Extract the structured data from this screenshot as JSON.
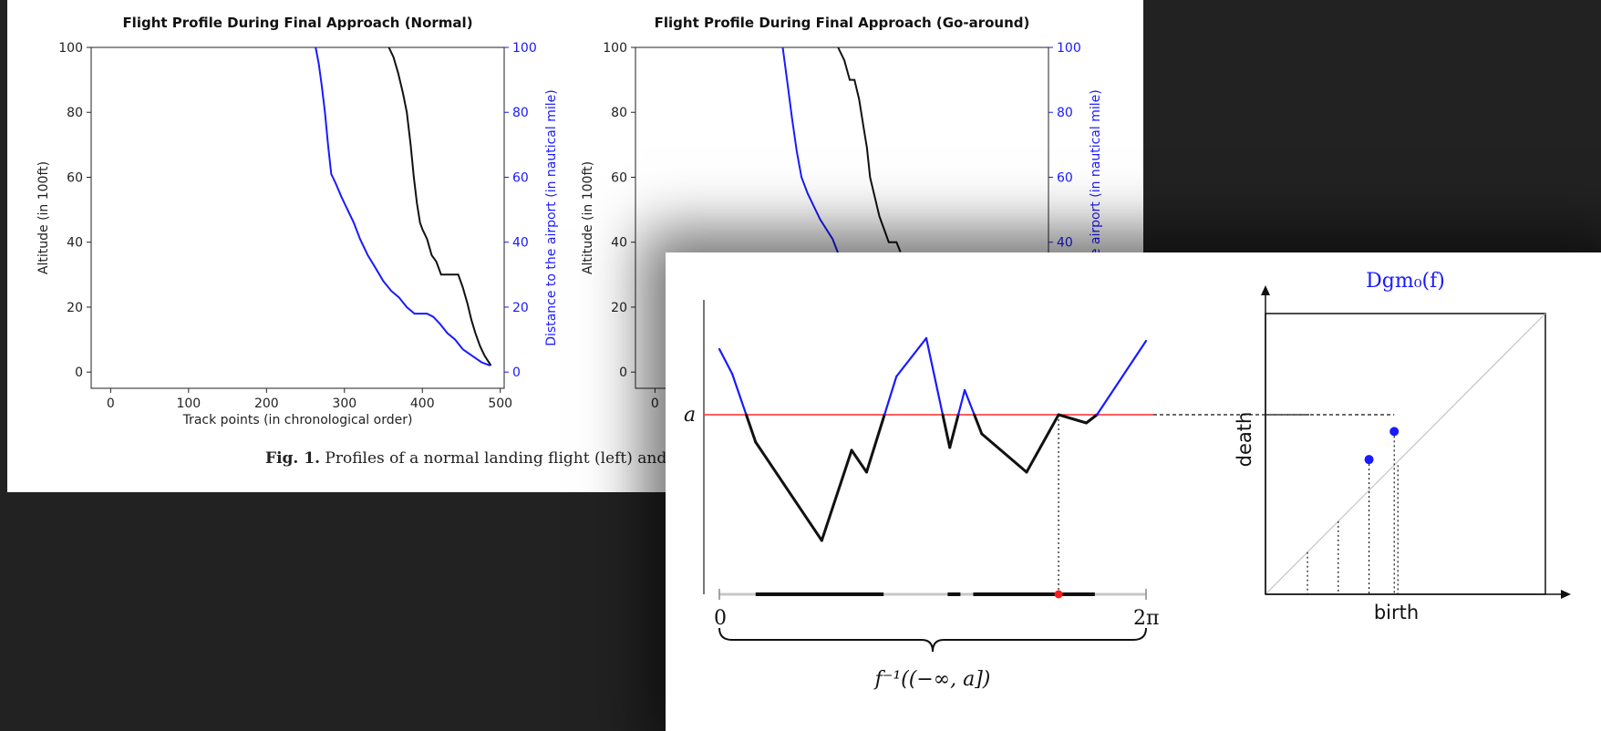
{
  "figure1": {
    "caption_label": "Fig. 1.",
    "caption_text": "Profiles of a normal landing flight (left) and",
    "axis_color": "#222222",
    "secondary_color": "#1a1aff"
  },
  "chart_data": [
    {
      "type": "line",
      "title": "Flight Profile During Final Approach (Normal)",
      "xlabel": "Track points (in chronological order)",
      "ylabel": "Altitude (in 100ft)",
      "y2label": "Distance to the airport (in nautical mile)",
      "xlim": [
        -25,
        505
      ],
      "ylim": [
        -5,
        100
      ],
      "y2lim": [
        -5,
        100
      ],
      "x_ticks": [
        "0",
        "100",
        "200",
        "300",
        "400",
        "500"
      ],
      "y_ticks": [
        "0",
        "20",
        "40",
        "60",
        "80",
        "100"
      ],
      "y2_ticks": [
        "0",
        "20",
        "40",
        "60",
        "80",
        "100"
      ],
      "grid": false,
      "series": [
        {
          "axis": "left",
          "color": "#111111",
          "x": [
            357,
            363,
            369,
            375,
            380,
            385,
            389,
            393,
            397,
            400,
            406,
            412,
            418,
            424,
            428,
            433,
            437,
            441,
            446,
            452,
            458,
            463,
            468,
            474,
            480,
            488
          ],
          "y": [
            100,
            97,
            92,
            86,
            80,
            70,
            60,
            52,
            46,
            44,
            41,
            36,
            34,
            30,
            30,
            30,
            30,
            30,
            30,
            26,
            21,
            16,
            12,
            8,
            5,
            2
          ]
        },
        {
          "axis": "right",
          "color": "#1a1aff",
          "x": [
            263,
            267,
            271,
            275,
            279,
            283,
            289,
            296,
            304,
            312,
            320,
            330,
            340,
            350,
            360,
            370,
            380,
            390,
            398,
            406,
            414,
            422,
            432,
            442,
            452,
            464,
            476,
            487
          ],
          "y": [
            100,
            95,
            88,
            80,
            70,
            61,
            58,
            54,
            50,
            46,
            41,
            36,
            32,
            28,
            25,
            23,
            20,
            18,
            18,
            18,
            17,
            15,
            12,
            10,
            7,
            5,
            3,
            2
          ]
        }
      ]
    },
    {
      "type": "line",
      "title": "Flight Profile During Final Approach (Go-around)",
      "xlabel": "",
      "ylabel": "Altitude (in 100ft)",
      "y2label": "Distance to the airport (in nautical mile)",
      "xlim": [
        -25,
        505
      ],
      "ylim": [
        -5,
        100
      ],
      "y2lim": [
        -5,
        100
      ],
      "x_ticks": [
        "0"
      ],
      "y_ticks": [
        "0",
        "20",
        "40",
        "60",
        "80",
        "100"
      ],
      "y2_ticks": [
        "40",
        "60",
        "80",
        "100"
      ],
      "grid": false,
      "series": [
        {
          "axis": "left",
          "color": "#111111",
          "x": [
            235,
            243,
            250,
            256,
            262,
            268,
            272,
            276,
            282,
            288,
            294,
            300,
            306,
            310,
            315
          ],
          "y": [
            100,
            96,
            90,
            90,
            84,
            75,
            69,
            60,
            54,
            48,
            44,
            40,
            40,
            40,
            37
          ]
        },
        {
          "axis": "right",
          "color": "#1a1aff",
          "x": [
            164,
            170,
            176,
            182,
            188,
            196,
            204,
            212,
            220,
            228,
            236
          ],
          "y": [
            100,
            89,
            78,
            68,
            60,
            55,
            51,
            47,
            44,
            41,
            36
          ]
        }
      ]
    }
  ],
  "figure2": {
    "label_a": "a",
    "label_zero": "0",
    "label_two_pi": "2π",
    "preimage_label": "f⁻¹((−∞, a])",
    "dgm_title": "Dgm₀(f)",
    "birth_label": "birth",
    "death_label": "death",
    "function_curve": {
      "x": [
        0,
        0.03,
        0.085,
        0.24,
        0.31,
        0.345,
        0.415,
        0.485,
        0.54,
        0.575,
        0.615,
        0.72,
        0.795,
        0.86,
        0.885,
        1.0
      ],
      "y": [
        0.92,
        0.83,
        0.58,
        0.22,
        0.55,
        0.47,
        0.82,
        0.96,
        0.56,
        0.77,
        0.61,
        0.47,
        0.68,
        0.65,
        0.68,
        0.95
      ],
      "below_color": "#111111",
      "above_color": "#1a1aff"
    },
    "level_a": 0.68,
    "level_color": "#ff2a2a",
    "marked_point_x": 0.795,
    "sublevel_intervals": [
      [
        0.085,
        0.385
      ],
      [
        0.535,
        0.565
      ],
      [
        0.595,
        0.88
      ]
    ],
    "diagram_points": [
      {
        "birth": 0.37,
        "death": 0.48,
        "color": "#1a1aff"
      },
      {
        "birth": 0.46,
        "death": 0.58,
        "color": "#1a1aff"
      }
    ]
  }
}
